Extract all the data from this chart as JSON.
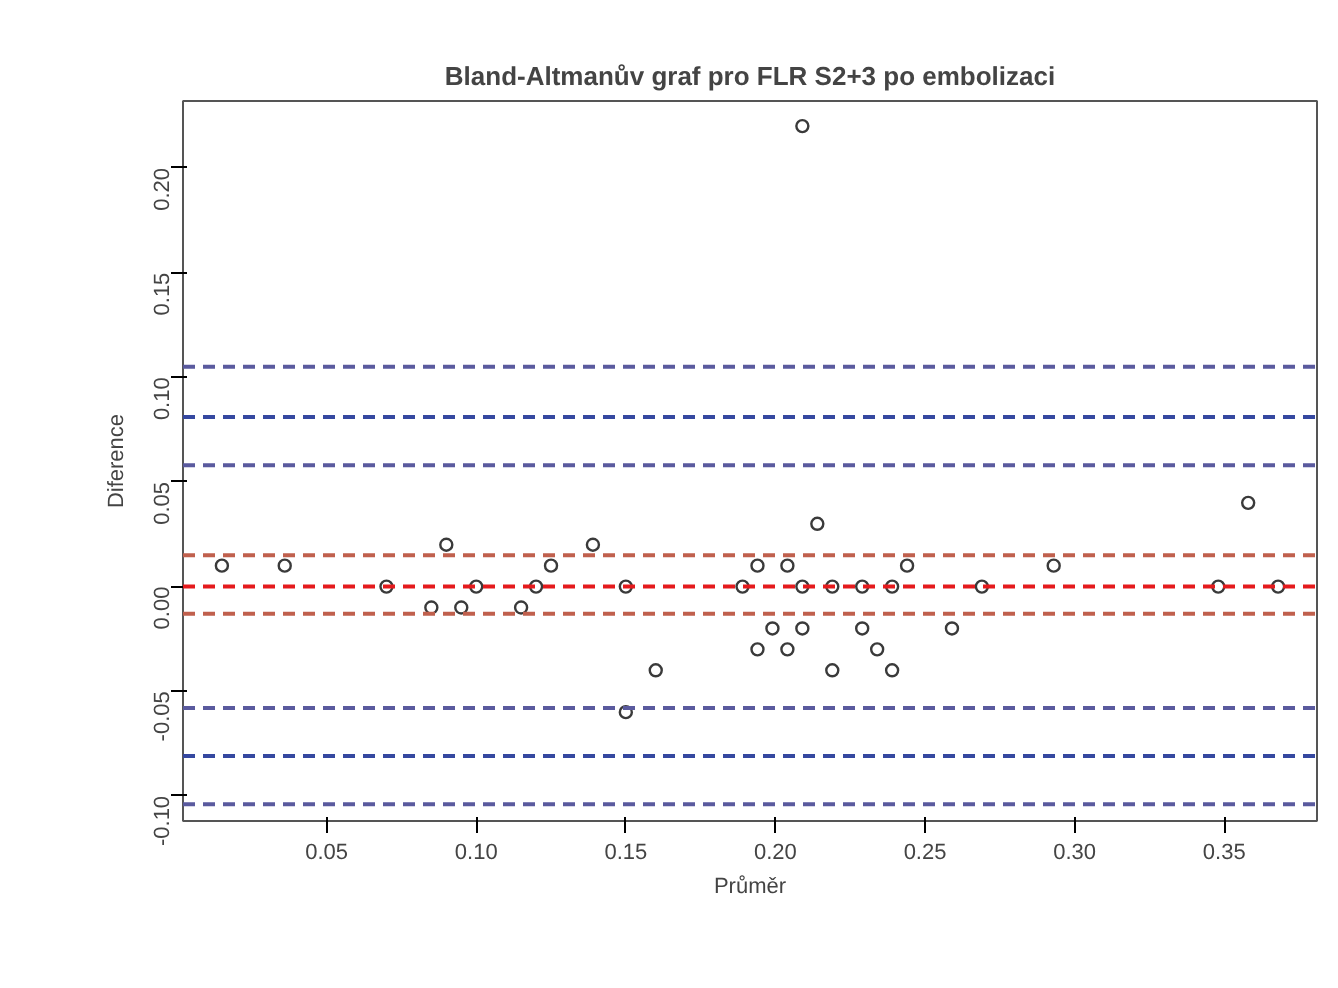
{
  "chart_data": {
    "type": "scatter",
    "title": "Bland-Altmanův graf pro FLR S2+3 po embolizaci",
    "xlabel": "Průměr",
    "ylabel": "Diference",
    "marker": "circle",
    "grid": false,
    "xlim": [
      0.002,
      0.381
    ],
    "ylim": [
      -0.112,
      0.232
    ],
    "xticks": [
      0.05,
      {
        "value": 0.1,
        "label": "0.10"
      },
      0.15,
      {
        "value": 0.2,
        "label": "0.20"
      },
      0.25,
      {
        "value": 0.3,
        "label": "0.30"
      },
      0.35
    ],
    "yticks": [
      {
        "value": -0.1,
        "label": "-0.10"
      },
      -0.05,
      {
        "value": 0,
        "label": "0.00"
      },
      0.05,
      {
        "value": 0.1,
        "label": "0.10"
      },
      0.15,
      {
        "value": 0.2,
        "label": "0.20"
      }
    ],
    "series": [
      {
        "color": "#3a3a3a",
        "x": [
          0.015,
          0.036,
          0.07,
          0.085,
          0.09,
          0.095,
          0.1,
          0.115,
          0.12,
          0.125,
          0.139,
          0.15,
          0.15,
          0.16,
          0.189,
          0.194,
          0.194,
          0.199,
          0.204,
          0.204,
          0.209,
          0.209,
          0.209,
          0.214,
          0.219,
          0.219,
          0.229,
          0.229,
          0.234,
          0.239,
          0.239,
          0.244,
          0.259,
          0.269,
          0.293,
          0.348,
          0.358,
          0.368
        ],
        "values": [
          0.01,
          0.01,
          0,
          -0.01,
          0.02,
          -0.01,
          0,
          -0.01,
          0,
          0.01,
          0.02,
          0,
          -0.06,
          -0.04,
          0,
          0.01,
          -0.03,
          -0.02,
          0.01,
          -0.03,
          0.22,
          0,
          -0.02,
          0.03,
          0,
          -0.04,
          0,
          -0.02,
          -0.03,
          0,
          -0.04,
          0.01,
          -0.02,
          0,
          0.01,
          0,
          0.04,
          0
        ]
      }
    ],
    "ref_lines": [
      {
        "axis": "y",
        "value": 0.105,
        "color": "#5a5a9e",
        "line_style": "dashed"
      },
      {
        "axis": "y",
        "value": 0.081,
        "color": "#3548a0",
        "line_style": "dashed"
      },
      {
        "axis": "y",
        "value": 0.058,
        "color": "#5a5a9e",
        "line_style": "dashed"
      },
      {
        "axis": "y",
        "value": 0.015,
        "color": "#c0604d",
        "line_style": "dashed"
      },
      {
        "axis": "y",
        "value": 0,
        "color": "#e41a1c",
        "line_style": "dashed"
      },
      {
        "axis": "y",
        "value": -0.013,
        "color": "#c0604d",
        "line_style": "dashed"
      },
      {
        "axis": "y",
        "value": -0.058,
        "color": "#5a5a9e",
        "line_style": "dashed"
      },
      {
        "axis": "y",
        "value": -0.081,
        "color": "#3548a0",
        "line_style": "dashed"
      },
      {
        "axis": "y",
        "value": -0.104,
        "color": "#5a5a9e",
        "line_style": "dashed"
      }
    ]
  }
}
